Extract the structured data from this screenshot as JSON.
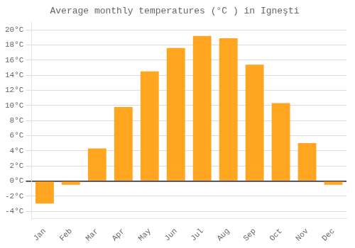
{
  "chart_data": {
    "type": "bar",
    "title": "Average monthly temperatures (°C ) in Igneşti",
    "categories": [
      "Jan",
      "Feb",
      "Mar",
      "Apr",
      "May",
      "Jun",
      "Jul",
      "Aug",
      "Sep",
      "Oct",
      "Nov",
      "Dec"
    ],
    "values": [
      -3.0,
      -0.5,
      4.3,
      9.8,
      14.5,
      17.6,
      19.2,
      18.9,
      15.4,
      10.3,
      5.0,
      -0.5
    ],
    "color": "#FFA520",
    "ylim": [
      -5,
      21
    ],
    "yticks": [
      {
        "value": -4,
        "label": "-4°C"
      },
      {
        "value": -2,
        "label": "-2°C"
      },
      {
        "value": 0,
        "label": "0°C"
      },
      {
        "value": 2,
        "label": "2°C"
      },
      {
        "value": 4,
        "label": "4°C"
      },
      {
        "value": 6,
        "label": "6°C"
      },
      {
        "value": 8,
        "label": "8°C"
      },
      {
        "value": 10,
        "label": "10°C"
      },
      {
        "value": 12,
        "label": "12°C"
      },
      {
        "value": 14,
        "label": "14°C"
      },
      {
        "value": 16,
        "label": "16°C"
      },
      {
        "value": 18,
        "label": "18°C"
      },
      {
        "value": 20,
        "label": "20°C"
      }
    ],
    "grid": true
  }
}
